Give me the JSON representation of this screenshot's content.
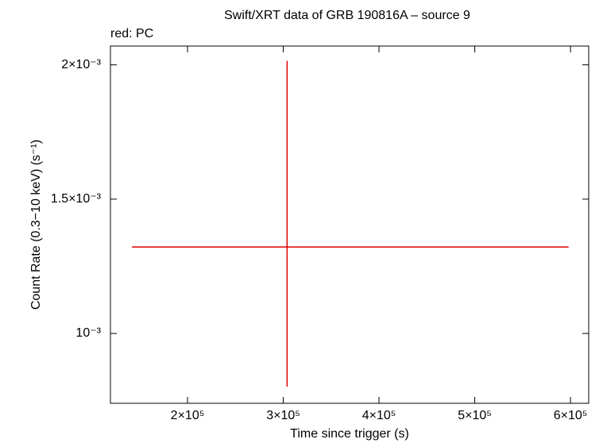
{
  "chart_data": {
    "type": "scatter",
    "title": "Swift/XRT data of GRB 190816A – source 9",
    "subtitle": "red: PC",
    "x_label": "Time since trigger (s)",
    "y_label": "Count Rate (0.3−10 keV) (s⁻¹)",
    "xlim": [
      119500,
      619000
    ],
    "ylim": [
      0.00074,
      0.00207
    ],
    "xticks": [
      {
        "value": 200000,
        "label": "2×10⁵"
      },
      {
        "value": 300000,
        "label": "3×10⁵"
      },
      {
        "value": 400000,
        "label": "4×10⁵"
      },
      {
        "value": 500000,
        "label": "5×10⁵"
      },
      {
        "value": 600000,
        "label": "6×10⁵"
      }
    ],
    "yticks": [
      {
        "value": 0.001,
        "label": "10⁻³"
      },
      {
        "value": 0.0015,
        "label": "1.5×10⁻³"
      },
      {
        "value": 0.002,
        "label": "2×10⁻³"
      }
    ],
    "series": [
      {
        "color": "#e00000",
        "x": [
          304000
        ],
        "xerr_minus": [
          162000
        ],
        "xerr_plus": [
          294000
        ],
        "values": [
          0.001322
        ],
        "yerr_minus": [
          0.00052
        ],
        "yerr_plus": [
          0.000693
        ]
      }
    ]
  }
}
